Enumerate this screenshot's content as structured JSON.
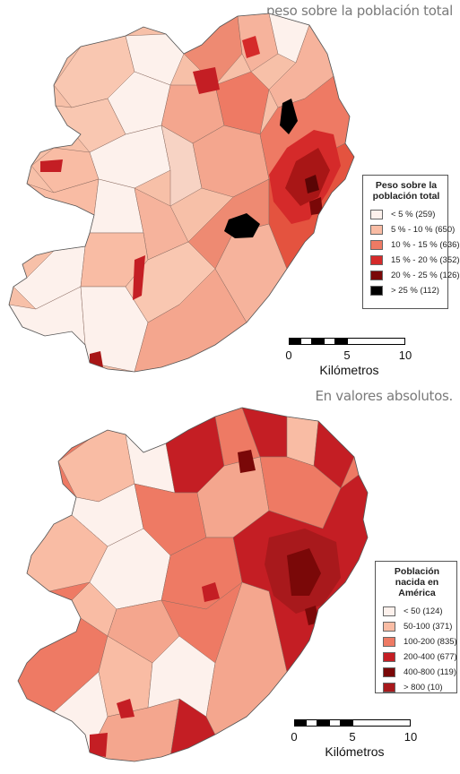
{
  "captions": {
    "top": "peso sobre la población total",
    "middle": "En valores absolutos."
  },
  "map_top": {
    "legend": {
      "title": "Peso sobre la población total",
      "items": [
        {
          "label": "< 5 % (259)",
          "color": "#fdf1ec"
        },
        {
          "label": "5 % - 10 % (650)",
          "color": "#f9bca4"
        },
        {
          "label": "10 % - 15 % (636)",
          "color": "#ee7a64"
        },
        {
          "label": "15 % - 20 % (352)",
          "color": "#d52a2a"
        },
        {
          "label": "20 % - 25 % (126)",
          "color": "#7a0808"
        },
        {
          "label": "> 25 % (112)",
          "color": "#000000"
        }
      ]
    },
    "scale": {
      "ticks": [
        "0",
        "5",
        "10"
      ],
      "unit": "Kilómetros"
    }
  },
  "map_bottom": {
    "legend": {
      "title": "Población nacida en América",
      "items": [
        {
          "label": "< 50  (124)",
          "color": "#fdf1ec"
        },
        {
          "label": "50-100 (371)",
          "color": "#f9bca4"
        },
        {
          "label": "100-200 (835)",
          "color": "#ee7a64"
        },
        {
          "label": "200-400 (677)",
          "color": "#c41e24"
        },
        {
          "label": "400-800 (119)",
          "color": "#7a0808"
        },
        {
          "label": "> 800 (10)",
          "color": "#a8191c"
        }
      ]
    },
    "scale": {
      "ticks": [
        "0",
        "5",
        "10"
      ],
      "unit": "Kilómetros"
    }
  }
}
